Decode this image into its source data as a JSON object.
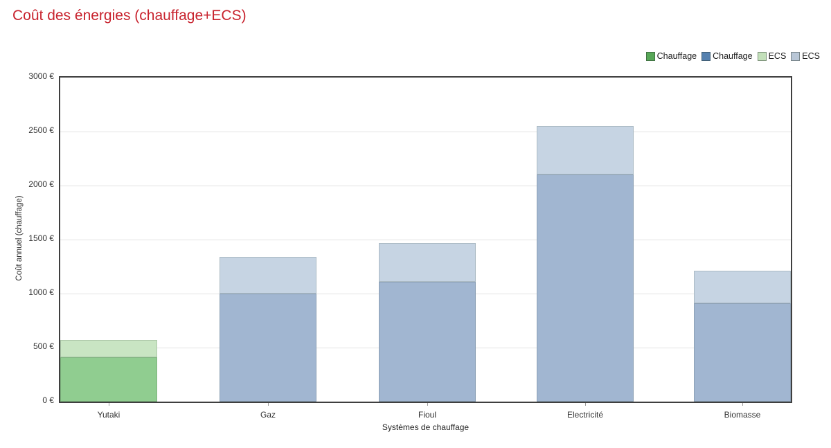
{
  "chart_data": {
    "type": "bar",
    "stacked": true,
    "title": "Coût des énergies (chauffage+ECS)",
    "title_color": "#c8232e",
    "xlabel": "Systèmes de chauffage",
    "ylabel": "Coût annuel (chauffage)",
    "categories": [
      "Yutaki",
      "Gaz",
      "Fioul",
      "Electricité",
      "Biomasse"
    ],
    "series": [
      {
        "name": "Chauffage",
        "legend_color": "#57a757",
        "fill": "#90cd90",
        "values": [
          410,
          0,
          0,
          0,
          0
        ]
      },
      {
        "name": "Chauffage",
        "legend_color": "#5581af",
        "fill": "#a1b6d1",
        "values": [
          0,
          1000,
          1110,
          2100,
          910
        ]
      },
      {
        "name": "ECS",
        "legend_color": "#c3e0ba",
        "fill": "#c9e5c3",
        "values": [
          160,
          0,
          0,
          0,
          0
        ]
      },
      {
        "name": "ECS",
        "legend_color": "#b8c6d6",
        "fill": "#c6d4e3",
        "values": [
          0,
          340,
          360,
          450,
          300
        ]
      }
    ],
    "totals": [
      570,
      1340,
      1470,
      2550,
      1210
    ],
    "ylim": [
      0,
      3000
    ],
    "ytick_values": [
      0,
      500,
      1000,
      1500,
      2000,
      2500,
      3000
    ],
    "ytick_labels": [
      "0 €",
      "500 €",
      "1000 €",
      "1500 €",
      "2000 €",
      "2500 €",
      "3000 €"
    ],
    "grid": true,
    "legend_position": "top-right",
    "currency": "€"
  }
}
